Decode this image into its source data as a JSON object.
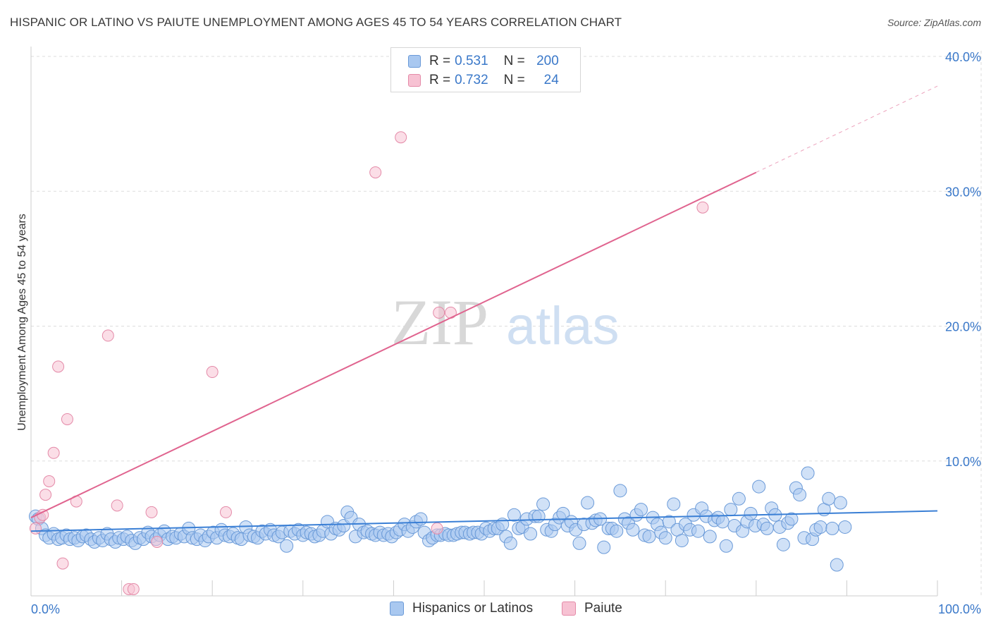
{
  "title": "HISPANIC OR LATINO VS PAIUTE UNEMPLOYMENT AMONG AGES 45 TO 54 YEARS CORRELATION CHART",
  "source": "Source: ZipAtlas.com",
  "watermark": {
    "zip": "ZIP",
    "atlas": "atlas"
  },
  "legend_top": [
    {
      "r_label": "R =",
      "r_value": "0.531",
      "n_label": "N =",
      "n_value": "200"
    },
    {
      "r_label": "R =",
      "r_value": "0.732",
      "n_label": "N =",
      "n_value": "24"
    }
  ],
  "legend_bottom": [
    {
      "label": "Hispanics or Latinos"
    },
    {
      "label": "Paiute"
    }
  ],
  "colors": {
    "blue_fill": "#a9c8f0",
    "blue_stroke": "#6a9ad8",
    "blue_line": "#3a7fd5",
    "pink_fill": "#f7c2d3",
    "pink_stroke": "#e48aa8",
    "pink_line": "#e0648f",
    "tick_text": "#3a78c9",
    "grid": "#dddddd"
  },
  "chart_data": {
    "type": "scatter",
    "title": "HISPANIC OR LATINO VS PAIUTE UNEMPLOYMENT AMONG AGES 45 TO 54 YEARS CORRELATION CHART",
    "xlabel": "",
    "ylabel": "Unemployment Among Ages 45 to 54 years",
    "xlim": [
      0,
      100
    ],
    "ylim": [
      0,
      40
    ],
    "x_tick_labels": [
      "0.0%",
      "100.0%"
    ],
    "y_ticks": [
      10,
      20,
      30,
      40
    ],
    "y_tick_labels": [
      "10.0%",
      "20.0%",
      "30.0%",
      "40.0%"
    ],
    "grid": true,
    "legend_position": "top-center",
    "series": [
      {
        "name": "Hispanics or Latinos",
        "color": "#a9c8f0",
        "trend": {
          "x": [
            0,
            100
          ],
          "y": [
            4.8,
            6.3
          ]
        },
        "points": [
          [
            0.5,
            5.9
          ],
          [
            0.8,
            5.7
          ],
          [
            1.2,
            5.0
          ],
          [
            1.6,
            4.5
          ],
          [
            2.0,
            4.3
          ],
          [
            2.5,
            4.6
          ],
          [
            3.0,
            4.2
          ],
          [
            3.4,
            4.3
          ],
          [
            3.9,
            4.5
          ],
          [
            4.3,
            4.2
          ],
          [
            4.8,
            4.3
          ],
          [
            5.2,
            4.1
          ],
          [
            5.7,
            4.4
          ],
          [
            6.1,
            4.5
          ],
          [
            6.6,
            4.2
          ],
          [
            7.0,
            4.0
          ],
          [
            7.5,
            4.3
          ],
          [
            7.9,
            4.1
          ],
          [
            8.4,
            4.6
          ],
          [
            8.8,
            4.2
          ],
          [
            9.3,
            4.0
          ],
          [
            9.7,
            4.3
          ],
          [
            10.2,
            4.2
          ],
          [
            10.6,
            4.4
          ],
          [
            11.1,
            4.1
          ],
          [
            11.5,
            3.9
          ],
          [
            12.0,
            4.3
          ],
          [
            12.4,
            4.2
          ],
          [
            12.9,
            4.7
          ],
          [
            13.3,
            4.4
          ],
          [
            13.8,
            4.2
          ],
          [
            14.2,
            4.5
          ],
          [
            14.7,
            4.8
          ],
          [
            15.1,
            4.2
          ],
          [
            15.6,
            4.4
          ],
          [
            16.0,
            4.3
          ],
          [
            16.5,
            4.6
          ],
          [
            16.9,
            4.4
          ],
          [
            17.4,
            5.0
          ],
          [
            17.8,
            4.3
          ],
          [
            18.3,
            4.2
          ],
          [
            18.7,
            4.5
          ],
          [
            19.2,
            4.1
          ],
          [
            19.6,
            4.4
          ],
          [
            20.1,
            4.7
          ],
          [
            20.5,
            4.3
          ],
          [
            21.0,
            4.9
          ],
          [
            21.4,
            4.5
          ],
          [
            21.9,
            4.4
          ],
          [
            22.3,
            4.6
          ],
          [
            22.8,
            4.3
          ],
          [
            23.2,
            4.2
          ],
          [
            23.7,
            5.1
          ],
          [
            24.1,
            4.5
          ],
          [
            24.6,
            4.4
          ],
          [
            25.0,
            4.3
          ],
          [
            25.5,
            4.8
          ],
          [
            25.9,
            4.6
          ],
          [
            26.4,
            4.9
          ],
          [
            26.8,
            4.5
          ],
          [
            27.3,
            4.4
          ],
          [
            27.7,
            4.7
          ],
          [
            28.2,
            3.7
          ],
          [
            28.6,
            4.8
          ],
          [
            29.1,
            4.6
          ],
          [
            29.5,
            4.9
          ],
          [
            30.0,
            4.5
          ],
          [
            30.4,
            4.7
          ],
          [
            30.9,
            4.6
          ],
          [
            31.3,
            4.4
          ],
          [
            31.8,
            4.5
          ],
          [
            32.2,
            4.8
          ],
          [
            32.7,
            5.5
          ],
          [
            33.1,
            4.6
          ],
          [
            33.6,
            5.0
          ],
          [
            34.0,
            4.9
          ],
          [
            34.5,
            5.2
          ],
          [
            34.9,
            6.2
          ],
          [
            35.3,
            5.8
          ],
          [
            35.8,
            4.4
          ],
          [
            36.2,
            5.3
          ],
          [
            36.7,
            4.7
          ],
          [
            37.1,
            4.8
          ],
          [
            37.6,
            4.6
          ],
          [
            38.0,
            4.5
          ],
          [
            38.5,
            4.7
          ],
          [
            38.9,
            4.5
          ],
          [
            39.4,
            4.6
          ],
          [
            39.8,
            4.4
          ],
          [
            40.3,
            4.7
          ],
          [
            40.7,
            4.9
          ],
          [
            41.2,
            5.3
          ],
          [
            41.6,
            4.8
          ],
          [
            42.1,
            5.1
          ],
          [
            42.5,
            5.5
          ],
          [
            43.0,
            5.7
          ],
          [
            43.4,
            4.7
          ],
          [
            43.9,
            4.1
          ],
          [
            44.3,
            4.3
          ],
          [
            44.8,
            4.5
          ],
          [
            45.2,
            4.5
          ],
          [
            45.7,
            4.6
          ],
          [
            46.1,
            4.5
          ],
          [
            46.6,
            4.5
          ],
          [
            47.0,
            4.6
          ],
          [
            47.5,
            4.7
          ],
          [
            47.9,
            4.7
          ],
          [
            48.4,
            4.6
          ],
          [
            48.8,
            4.7
          ],
          [
            49.3,
            4.7
          ],
          [
            49.7,
            4.6
          ],
          [
            50.2,
            5.0
          ],
          [
            50.6,
            4.8
          ],
          [
            51.1,
            5.0
          ],
          [
            51.5,
            5.0
          ],
          [
            52.0,
            5.3
          ],
          [
            52.4,
            4.4
          ],
          [
            52.9,
            3.9
          ],
          [
            53.3,
            6.0
          ],
          [
            53.8,
            5.0
          ],
          [
            54.2,
            5.1
          ],
          [
            54.7,
            5.7
          ],
          [
            55.1,
            4.6
          ],
          [
            55.6,
            5.9
          ],
          [
            56.0,
            5.9
          ],
          [
            56.5,
            6.8
          ],
          [
            56.9,
            4.9
          ],
          [
            57.4,
            4.8
          ],
          [
            57.8,
            5.3
          ],
          [
            58.3,
            5.8
          ],
          [
            58.7,
            6.1
          ],
          [
            59.2,
            5.2
          ],
          [
            59.6,
            5.5
          ],
          [
            60.1,
            4.9
          ],
          [
            60.5,
            3.9
          ],
          [
            61.0,
            5.3
          ],
          [
            61.4,
            6.9
          ],
          [
            61.9,
            5.4
          ],
          [
            62.3,
            5.6
          ],
          [
            62.8,
            5.7
          ],
          [
            63.2,
            3.6
          ],
          [
            63.7,
            5.0
          ],
          [
            64.1,
            5.0
          ],
          [
            64.6,
            4.8
          ],
          [
            65.0,
            7.8
          ],
          [
            65.5,
            5.7
          ],
          [
            65.9,
            5.4
          ],
          [
            66.4,
            4.9
          ],
          [
            66.8,
            6.0
          ],
          [
            67.3,
            6.4
          ],
          [
            67.7,
            4.5
          ],
          [
            68.2,
            4.4
          ],
          [
            68.6,
            5.8
          ],
          [
            69.1,
            5.3
          ],
          [
            69.5,
            4.7
          ],
          [
            70.0,
            4.3
          ],
          [
            70.4,
            5.5
          ],
          [
            70.9,
            6.8
          ],
          [
            71.3,
            4.9
          ],
          [
            71.8,
            4.1
          ],
          [
            72.2,
            5.3
          ],
          [
            72.7,
            4.9
          ],
          [
            73.1,
            6.0
          ],
          [
            73.6,
            4.8
          ],
          [
            74.0,
            6.5
          ],
          [
            74.5,
            5.9
          ],
          [
            74.9,
            4.4
          ],
          [
            75.4,
            5.6
          ],
          [
            75.8,
            5.8
          ],
          [
            76.3,
            5.5
          ],
          [
            76.7,
            3.7
          ],
          [
            77.2,
            6.4
          ],
          [
            77.6,
            5.2
          ],
          [
            78.1,
            7.2
          ],
          [
            78.5,
            4.8
          ],
          [
            79.0,
            5.5
          ],
          [
            79.4,
            6.1
          ],
          [
            79.9,
            5.2
          ],
          [
            80.3,
            8.1
          ],
          [
            80.8,
            5.3
          ],
          [
            81.2,
            5.0
          ],
          [
            81.7,
            6.5
          ],
          [
            82.1,
            6.0
          ],
          [
            82.6,
            5.1
          ],
          [
            83.0,
            3.8
          ],
          [
            83.5,
            5.4
          ],
          [
            83.9,
            5.7
          ],
          [
            84.4,
            8.0
          ],
          [
            84.8,
            7.5
          ],
          [
            85.3,
            4.3
          ],
          [
            85.7,
            9.1
          ],
          [
            86.2,
            4.2
          ],
          [
            86.6,
            4.9
          ],
          [
            87.1,
            5.1
          ],
          [
            87.5,
            6.4
          ],
          [
            88.0,
            7.2
          ],
          [
            88.4,
            5.0
          ],
          [
            88.9,
            2.3
          ],
          [
            89.3,
            6.9
          ],
          [
            89.8,
            5.1
          ]
        ]
      },
      {
        "name": "Paiute",
        "color": "#f7c2d3",
        "trend": {
          "x": [
            0,
            80
          ],
          "y": [
            5.8,
            31.4
          ]
        },
        "trend_dashed_extension": {
          "x": [
            80,
            100
          ],
          "y": [
            31.4,
            37.8
          ]
        },
        "points": [
          [
            0.5,
            5.0
          ],
          [
            1.0,
            5.8
          ],
          [
            1.3,
            6.0
          ],
          [
            1.6,
            7.5
          ],
          [
            2.0,
            8.5
          ],
          [
            2.5,
            10.6
          ],
          [
            3.0,
            17.0
          ],
          [
            3.5,
            2.4
          ],
          [
            4.0,
            13.1
          ],
          [
            5.0,
            7.0
          ],
          [
            8.5,
            19.3
          ],
          [
            9.5,
            6.7
          ],
          [
            10.8,
            0.5
          ],
          [
            11.3,
            0.5
          ],
          [
            13.3,
            6.2
          ],
          [
            13.9,
            4.0
          ],
          [
            20.0,
            16.6
          ],
          [
            21.5,
            6.2
          ],
          [
            38.0,
            31.4
          ],
          [
            40.8,
            34.0
          ],
          [
            44.8,
            5.0
          ],
          [
            45.0,
            21.0
          ],
          [
            46.3,
            21.0
          ],
          [
            74.1,
            28.8
          ]
        ]
      }
    ]
  }
}
